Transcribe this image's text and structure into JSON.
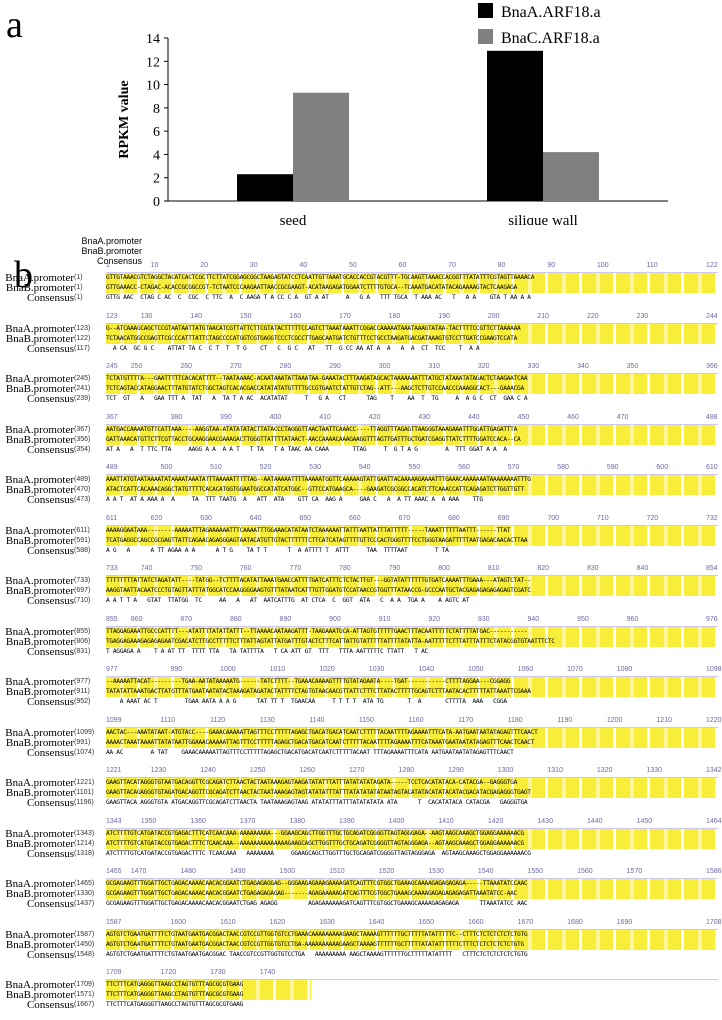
{
  "panel_a_label": "a",
  "panel_b_label": "b",
  "chart_data": {
    "type": "bar",
    "categories": [
      "seed",
      "silique wall"
    ],
    "series": [
      {
        "name": "BnaA.ARF18.a",
        "values": [
          2.3,
          12.9
        ],
        "color": "#000000"
      },
      {
        "name": "BnaC.ARF18.a",
        "values": [
          9.3,
          4.2
        ],
        "color": "#808080"
      }
    ],
    "title": "",
    "xlabel": "",
    "ylabel": "RPKM value",
    "ylim": [
      0,
      14
    ],
    "yticks": [
      "0",
      "2",
      "4",
      "6",
      "8",
      "10",
      "12",
      "14"
    ],
    "legend": "top-right",
    "grid": false
  },
  "alignment": {
    "header": [
      "BnaA.promoter",
      "BnaB.promoter",
      "Consensus"
    ],
    "names": {
      "a": "BnaA.promoter",
      "b": "BnaB.promoter",
      "c": "Consensus"
    },
    "blocks": [
      {
        "ruler": [
          "1",
          "10",
          "20",
          "30",
          "40",
          "50",
          "60",
          "70",
          "80",
          "90",
          "100",
          "110",
          "122"
        ],
        "nums": [
          "(1)",
          "(1)",
          "(1)"
        ],
        "seqs": [
          "GTTGTAAACGTCTAGGCTACATCACTCGCTTCTTATCGGAGCGGCTAAGAGTATCCTCAATTGTTAAATGCACCACCGTACGTTT-TGCAAGTTAAACCACGGTTTATATTTCGTAGTTAAAACA",
          "GTTGAAACC-CTAGAC-ACACCGCGGCCGT-TCTAATCCCAAGAATTAACCGCGAAGT-ACATAAGAGATGGAATCTTTTGTGCA--TCAAATGACATATACAGAAAAGTACTCAAGAGA",
          "GTTG AAC  CTAG C AC  C  CGC  C TTC  A  C AAGA T A CC C A  GT A AT     A   G A   TTT TGCA  T AAA AC   T   A A    GTA T AA A A"
        ]
      },
      {
        "ruler": [
          "123",
          "130",
          "140",
          "150",
          "160",
          "170",
          "180",
          "190",
          "200",
          "210",
          "220",
          "230",
          "244"
        ],
        "nums": [
          "(123)",
          "(122)",
          "(117)"
        ],
        "seqs": [
          "G--ATCAAAGCAGCTCCGTAATAATTATGTAACATCGTTATTCTTCGTATACTTTTTCCAGTCTTAAATAAATTCGGACCAAAAATAAATAAAGTATAA-TACTTTTCCGTTCTTAAAAAA",
          "TCTAACATGGCCGAGTTCGCCCATTTATTCTAGCCCCATGGTCGTGAGGTCCCTCGCCTTGAGCAATGATCTGTTTCCTGCCTAAGATGACGATAAAGTGTCCTTGATCCGAAGTCCATA",
          "  A CA  GC G C    ATTAT TA C  C T  T  T G    CT   C  G C   AT   TT  G CC AA AT A  A   A  A  CT  TCC    T  A A"
        ]
      },
      {
        "ruler": [
          "245",
          "250",
          "260",
          "270",
          "280",
          "290",
          "300",
          "310",
          "320",
          "330",
          "340",
          "350",
          "366"
        ],
        "nums": [
          "(245)",
          "(241)",
          "(239)"
        ],
        "seqs": [
          "TCTATGTTTTA---GAATTTTTCACACATTTT--TAATAAAAC-ACAATAAATATTAAATAA-GAAATACTTTAAGATAGCACTAAAAAAATTTATGCTATAAATATAGACTCTAAGAATCAA",
          "TCTCAGTACCATAGGAACTTTATGTATCTGGCTAGTCACACGACCATATATATGTTTTGCCGTGAATCTATTGTCTAG--ATT---AAGCTCTTGTCCAACCCAAAGGCACT---GAAACGA",
          "TCT  GT   A   GAA TTT A  TAT   A  TA T A AC  ACATATAT     T   G A   CT      TAG    T    AA  T  TG     A  A G C  CT  GAA C A"
        ]
      },
      {
        "ruler": [
          "367",
          "380",
          "390",
          "400",
          "410",
          "420",
          "430",
          "440",
          "450",
          "460",
          "470",
          "488"
        ],
        "nums": [
          "(367)",
          "(356)",
          "(354)"
        ],
        "seqs": [
          "AATGACCAAAATGTTCATTAAA----AAGGTAA-ATATATATACTTATACCCTAGGGTTAACTAATTCAAACC----TTAGGTTTAGAGTTAAGGGTAAAGAAATTTGGATTGAGATTTA",
          "GATTAAACATGTTCTTCGTTACCTGCAAGGAACGAAAGACTTGGGTTATTTTATAACT-AACCAAAACAAAGAAGGTTTAGTTGATTTGCTGATCGAGGTTATCTTTTGGATCCACA--CA",
          "AT A   A  T TTC TTA     AAGG A A  A A T   T TA   T A TAAC AA CAAA       TTAG     T  G T A G        A  TTT GGAT A A  A"
        ]
      },
      {
        "ruler": [
          "489",
          "500",
          "510",
          "520",
          "530",
          "540",
          "550",
          "560",
          "570",
          "580",
          "590",
          "600",
          "610"
        ],
        "nums": [
          "(489)",
          "(470)",
          "(473)"
        ],
        "seqs": [
          "AAATTATGTAATAAAATATAAAATAAATATTTAAAAATTTTTAG--AATAAAAATTTTAAAAATGGTTCAAAAAGTATTGAATTACAAAAAGAAAATTTGAAACAAAAAAATAAAAAAAATTTG",
          "ATACTCATTCACAAACAGGCTATGTTTTCACACATGGTGGAATGGCCATATCATGGC--GTTCCATGAAGCA----GAAGATCGCGGCCACATCTTCAAACCATTCAGAGATCTTGGTTGTT",
          "A A T  AT A AAA A  A     TA  TTT TAATG  A   ATT  ATA    GTT CA  AAG A     GAA C   A  A TT AAAC A  A AAA    TTG"
        ]
      },
      {
        "ruler": [
          "611",
          "620",
          "630",
          "640",
          "650",
          "660",
          "670",
          "680",
          "690",
          "700",
          "710",
          "720",
          "732"
        ],
        "nums": [
          "(611)",
          "(591)",
          "(588)"
        ],
        "seqs": [
          "AAAAGGAATAAA--------AAAAATTTAGAAAAAATTTCAAAATTTGGAAACATATAATCTAAAAAATTATTTAATTATTTATTTTT-----TAAATTTTTTAATTT------TTAT",
          "TCATGAGGCCAGCCGCGAGTTATTCAGAACAGAGGGAGTAATACATGTTGTACTTTTTTCTTCATCATAGTTTTGTTCCCACTGGGTTTTCCTGGGTAAGATTTTTAATGAGACAACACTTAA",
          "A G   A      A TT AGAA A A      A T G    TA T T      T  A ATTTT T  ATTT     TAA  TTTTAAT        T TA"
        ]
      },
      {
        "ruler": [
          "733",
          "740",
          "750",
          "760",
          "770",
          "780",
          "790",
          "800",
          "810",
          "820",
          "830",
          "840",
          "854"
        ],
        "nums": [
          "(733)",
          "(697)",
          "(710)"
        ],
        "seqs": [
          "TTTTTTTTATTATCTAGATATT----TATGG--TCTTTTACATATTAAATGAACCATTTTGATCATTTCTCTACTTGT---GGTATATTTTTTGTGATCAAAATTTGAAA---ATAGTCTAT--",
          "AAGGTAATTACAATCCCTGTAGTTATTTATGGCATCCAAGGGGAAGTGTTTATAATCATTTGTTGGATGTCCATAACCGTGGTTTATAACCG-GCCCAATGCTACGAGAGAGAGAGAGTCGATC",
          "A A T T A   GTAT  TTATGG  TC     AA   A   AT  AATCATTTG  AT CTCA  C  GGT  ATA   C  A A  TGA A    A AGTC AT"
        ]
      },
      {
        "ruler": [
          "855",
          "860",
          "870",
          "880",
          "890",
          "900",
          "910",
          "920",
          "930",
          "940",
          "950",
          "960",
          "976"
        ],
        "nums": [
          "(855)",
          "(806)",
          "(831)"
        ],
        "seqs": [
          "TTAGGAGAAATTGCCCATTTT---ATATTTTATATTATTT--TTAAAACAATAAGATTT-TAAGAAATGCA-ATTAGTGTTTTTGAACTTTACAATTTTTCTATTTTATGAC-----------",
          "TGAGGAGAAAGAGAGAGAATCGACATCTTGCCTTTTTCTTTATTAGTATTATGATTTGTACTCTTTCATTATTGTATTTTTATTTTATATTA-AATTTTTCTTTATTTATTTCTATACGGTGTAATTTCTC",
          "T AGGAGA A    T A AT TT  TTTT TTA   TA TATTTTA   T CA ATT GT  TTT   TTTA AATTTTTC TTATT   T AC"
        ]
      },
      {
        "ruler": [
          "977",
          "990",
          "1000",
          "1010",
          "1020",
          "1030",
          "1040",
          "1050",
          "1060",
          "1070",
          "1080",
          "1098"
        ],
        "nums": [
          "(977)",
          "(911)",
          "(952)"
        ],
        "seqs": [
          "--AAAAATTACAT---------TGAA-AATATAAAAATG------TATCTTTT--TGAAACAAAAGTTTTGTATAGAATA----TGAT-----------CTTTTAGGAA---CGGAGG",
          "TATATATTAAATGACTTATGTTTATGAATAATATACTAAAGATAGATACTATTTTCTAGTGTAACAACGTTATTCTTTCTTATACTTTTTGCAGTCTTTAATACACTTTTTATTAAATTCGAAA",
          "    A AAAT AC T        TGAA AATA A A G      TAT TT T  TGAACAA     T T T T  ATA TG       T  A       CTTTTA  AAA   CGGA"
        ]
      },
      {
        "ruler": [
          "1099",
          "1110",
          "1120",
          "1130",
          "1140",
          "1150",
          "1160",
          "1170",
          "1180",
          "1190",
          "1200",
          "1210",
          "1220"
        ],
        "nums": [
          "(1099)",
          "(991)",
          "(1074)"
        ],
        "seqs": [
          "AACTAC---AAATATAAT-ATGTACC----GAAACAAAAATTAGTTTCCTTTTTAGAGCTGACATGACATCAATCTTTTTACAATTTTAGAAAATTTCATA-AATGAATAATATAGAGTTTCAACT",
          "AAAACTAAATAAAATTATATAATTGGAAACAAAAATTAGTTTCCTTTTTAGAGCTGACATGACATCAATCTTTTTACAATTTTAGAAAATTTCATAAATGAATAATATAGAGTTTCAACTCAACT",
          "AA AC        A TAT    GAAACAAAAATTAGTTTCCTTTTTAGAGCTGACATGACATCAATCTTTTTACAAT TTTAGAAAATTTCATA AATGAATAATATAGAGTTTCAACT"
        ]
      },
      {
        "ruler": [
          "1221",
          "1230",
          "1240",
          "1250",
          "1260",
          "1270",
          "1280",
          "1290",
          "1300",
          "1310",
          "1320",
          "1330",
          "1342"
        ],
        "nums": [
          "(1221)",
          "(1101)",
          "(1196)"
        ],
        "seqs": [
          "GAAGTTACATAGGGTGTAATGACAGGTTCGCAGATCTTAACTACTAATAAAGAGTAAGATATATTTATTTATATATATAGATA-----TCCTCACATATACA-CATACGA--GAGGGTGA",
          "GAAGTTACAGAGGGTGTAGATGACAGGTTCGCAGATCTTAACTACTAATAAAGAGTAGTATATATTTATTTATATATATATAATAGTACATATACATATACATACGACATACGAGAGGGTGAGT",
          "GAAGTTACA AGGGTGTA ATGACAGGTTCGCAGATCTTAACTA TAATAAAGAGTAAG ATATATTTATTTATATATATA ATA      T  CACATATACA CATACGA   GAGGGTGA"
        ]
      },
      {
        "ruler": [
          "1343",
          "1350",
          "1360",
          "1370",
          "1380",
          "1390",
          "1400",
          "1410",
          "1420",
          "1430",
          "1440",
          "1450",
          "1464"
        ],
        "nums": [
          "(1343)",
          "(1214)",
          "(1318)"
        ],
        "seqs": [
          "ATCTTTTGTCATGATACCGTGAGACTTTCATCAACAAA-AAAAAAAAA---GGAAGCAGCTTGGTTTGCTGCAGATCGGGGTTAGTAGGGAGA--AAGTAAGCAAAGCTGGAGGAAAAAACG",
          "ATCTTTTGTCATGATACCGTGAGACTTTCTCAACAAA--AAAAAAAAAAAAAAGAAGCAGCTTGGTTTGCTGCAGATCGGGGTTAGTAGGGAGA--AGTAAGCAAAGCTGGAGGAAAAAACG",
          "ATCTTTTGTCATGATACCGTGAGACTTTC TCAACAAA   AAAAAAAA     GGAAGCAGCTTGGTTTGCTGCAGATCGGGGTTAGTAGGGAGA  AGTAAGCAAAGCTGGAGGAAAAAACG"
        ]
      },
      {
        "ruler": [
          "1465",
          "1470",
          "1480",
          "1490",
          "1500",
          "1510",
          "1520",
          "1530",
          "1540",
          "1550",
          "1560",
          "1570",
          "1586"
        ],
        "nums": [
          "(1465)",
          "(1330)",
          "(1437)"
        ],
        "seqs": [
          "GCGAGAAGTTTGGATTGCTGAGACAAAACAACACGGAATCTGAGAGAGGAG--GGGAAGAGAAAGAAAAGATCAGTTTCGTGGCTGAAAGCAAAAGAGAGAGAGA-----TTAAATATCCAAC",
          "GCGAGAAGTTTGGATTGCTGAGACAAAACAACACGGAATCTGAGAGAGAGAG-------AGAGAAAAAGATCAGTTTCGTGGCTGAAAGCAAAAGAGAGAGAGAGATTAAATATCC-AAC",
          "GCGAGAAGTTTGGATTGCTGAGACAAAACAACACGGAATCTGAG AGAGG         AGAGAAAAAAGATCAGTTTCGTGGCTGAAAGCAAAAGAGAGAGA      TTAAATATCC AAC"
        ]
      },
      {
        "ruler": [
          "1587",
          "1600",
          "1610",
          "1620",
          "1630",
          "1640",
          "1650",
          "1660",
          "1670",
          "1680",
          "1690",
          "1708"
        ],
        "nums": [
          "(1587)",
          "(1450)",
          "(1548)"
        ],
        "seqs": [
          "AGTGTCTGAATGATTTTCTGTAATGAATGACGGACTAACCGTCCGTTGGTGTCCTGAAACAAAAAAAAAGAAGCTAAAAGTTTTTTGCTTTTTATATTTTTC--CTTTCTCTCTCTCTCTGTG",
          "AGTGTCTGAATGATTTTCTGTAATGAATGACGGACTAACCGTCCGTTGGTGTCCTGA-AAAAAAAAAAGAAGCTAAAAGTTTTTTGCTTTTTATATATTTTTTCTTTCTCTCTCTCTCTGTG",
          "AGTGTCTGAATGATTTTCTGTAATGAATGACGGAC TAACCGTCCGTTGGTGTCCTGA   AAAAAAAAA AAGCTAAAAGTTTTTTGCTTTTTATATTTT   CTTTCTCTCTCTCTCTGTG"
        ]
      },
      {
        "ruler": [
          "1709",
          "1720",
          "1730",
          "1740"
        ],
        "nums": [
          "(1709)",
          "(1571)",
          "(1667)"
        ],
        "seqs": [
          "TTCTTTCATGAGGGTTAAGCCTAGTGTTTAGCGCGTGAAG",
          "TTCTTTCATGAGGGTTAAGCCTAGTGTTTAGCGCGTGAAG",
          "TTCTTTCATGAGGGTTAAGCCTAGTGTTTAGCGCGTGAAG"
        ]
      }
    ]
  }
}
